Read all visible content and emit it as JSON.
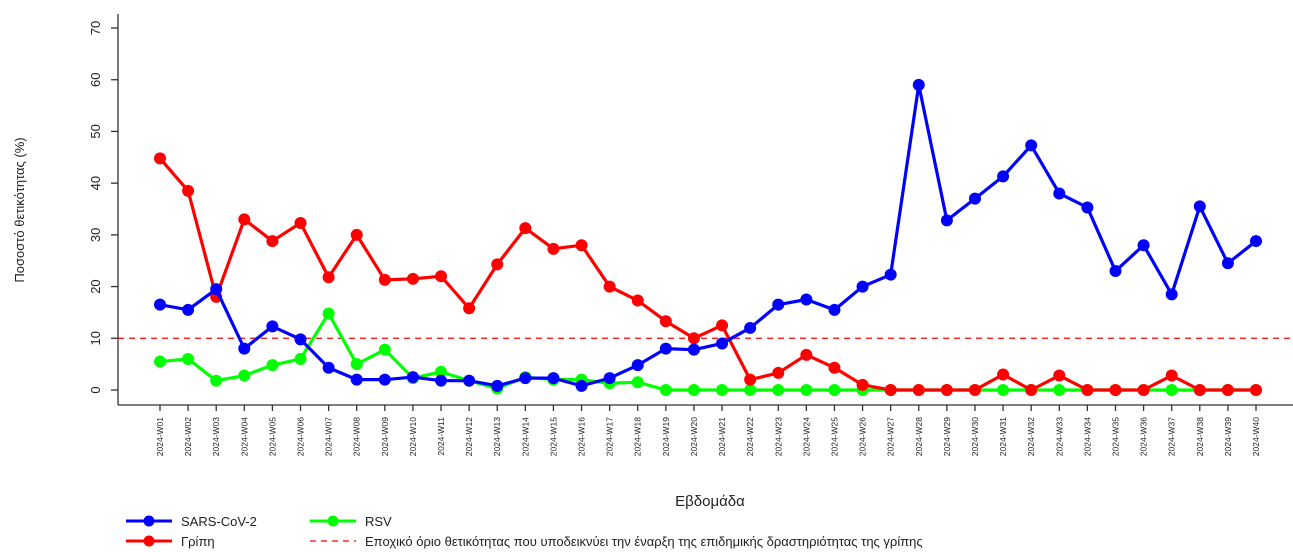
{
  "chart_data": {
    "type": "line",
    "xlabel": "Εβδομάδα",
    "ylabel": "Ποσοστό θετικότητας (%)",
    "ylim": [
      0,
      70
    ],
    "yticks": [
      0,
      10,
      20,
      30,
      40,
      50,
      60,
      70
    ],
    "grid": false,
    "legend_position": "bottom-left",
    "categories": [
      "2024-W01",
      "2024-W02",
      "2024-W03",
      "2024-W04",
      "2024-W05",
      "2024-W06",
      "2024-W07",
      "2024-W08",
      "2024-W09",
      "2024-W10",
      "2024-W11",
      "2024-W12",
      "2024-W13",
      "2024-W14",
      "2024-W15",
      "2024-W16",
      "2024-W17",
      "2024-W18",
      "2024-W19",
      "2024-W20",
      "2024-W21",
      "2024-W22",
      "2024-W23",
      "2024-W24",
      "2024-W25",
      "2024-W26",
      "2024-W27",
      "2024-W28",
      "2024-W29",
      "2024-W30",
      "2024-W31",
      "2024-W32",
      "2024-W33",
      "2024-W34",
      "2024-W35",
      "2024-W36",
      "2024-W37",
      "2024-W38",
      "2024-W39",
      "2024-W40"
    ],
    "series": [
      {
        "name": "SARS-CoV-2",
        "color": "#0000ff",
        "values": [
          16.5,
          15.5,
          19.5,
          8,
          12.3,
          9.8,
          4.3,
          2,
          2,
          2.5,
          1.8,
          1.8,
          0.8,
          2.3,
          2.3,
          0.8,
          2.3,
          4.8,
          8,
          7.8,
          9,
          12,
          16.5,
          17.5,
          15.5,
          20,
          22.3,
          59,
          32.8,
          37,
          41.3,
          47.3,
          38,
          35.3,
          23,
          28,
          18.5,
          35.5,
          24.5,
          28.8
        ]
      },
      {
        "name": "Γρίπη",
        "color": "#ff0000",
        "values": [
          44.8,
          38.5,
          18,
          33,
          28.8,
          32.3,
          21.8,
          30,
          21.3,
          21.5,
          22,
          15.8,
          24.3,
          31.3,
          27.3,
          28,
          20,
          17.3,
          13.3,
          10,
          12.5,
          2,
          3.3,
          6.8,
          4.3,
          1,
          0,
          0,
          0,
          0,
          3,
          0,
          2.8,
          0,
          0,
          0,
          2.8,
          0,
          0,
          0
        ]
      },
      {
        "name": "RSV",
        "color": "#00ff00",
        "values": [
          5.5,
          6,
          1.8,
          2.8,
          4.8,
          6,
          14.8,
          5,
          7.8,
          2.3,
          3.5,
          1.8,
          0.3,
          2.5,
          2,
          2,
          1.3,
          1.5,
          0,
          0,
          0,
          0,
          0,
          0,
          0,
          0,
          0,
          0,
          0,
          0,
          0,
          0,
          0,
          0,
          0,
          0,
          0,
          0,
          0,
          0
        ]
      }
    ],
    "threshold": {
      "value": 10,
      "color": "#ff0000",
      "label": "Εποχικό όριο θετικότητας που υποδεικνύει την έναρξη της επιδημικής δραστηριότητας της γρίπης"
    }
  }
}
